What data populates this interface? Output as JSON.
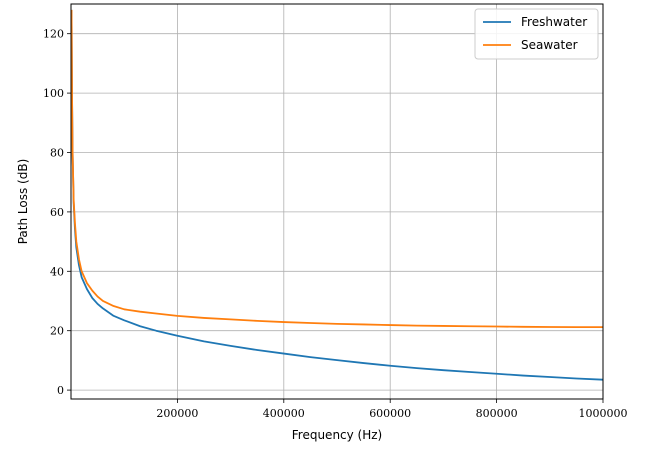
{
  "chart_data": {
    "type": "line",
    "xlabel": "Frequency (Hz)",
    "ylabel": "Path Loss (dB)",
    "xlim": [
      0,
      1000000
    ],
    "ylim": [
      -3,
      130
    ],
    "x_ticks": [
      200000,
      400000,
      600000,
      800000,
      1000000
    ],
    "x_tick_labels": [
      "200000",
      "400000",
      "600000",
      "800000",
      "1000000"
    ],
    "y_ticks": [
      0,
      20,
      40,
      60,
      80,
      100,
      120
    ],
    "y_tick_labels": [
      "0",
      "20",
      "40",
      "60",
      "80",
      "100",
      "120"
    ],
    "grid": true,
    "legend_position": "top-right",
    "series": [
      {
        "name": "Freshwater",
        "color": "#1f77b4",
        "x": [
          1000,
          2000,
          3000,
          5000,
          7500,
          10000,
          15000,
          20000,
          30000,
          40000,
          50000,
          60000,
          80000,
          100000,
          130000,
          160000,
          200000,
          250000,
          300000,
          350000,
          400000,
          450000,
          500000,
          550000,
          600000,
          650000,
          700000,
          750000,
          800000,
          850000,
          900000,
          950000,
          1000000
        ],
        "y": [
          128,
          98,
          80,
          63,
          54,
          48,
          42,
          38,
          34,
          31,
          29,
          27.5,
          25,
          23.5,
          21.5,
          20,
          18.3,
          16.4,
          14.9,
          13.5,
          12.3,
          11.1,
          10.1,
          9.1,
          8.2,
          7.4,
          6.7,
          6.1,
          5.5,
          4.9,
          4.4,
          3.9,
          3.5
        ]
      },
      {
        "name": "Seawater",
        "color": "#ff7f0e",
        "x": [
          1000,
          2000,
          3000,
          5000,
          7500,
          10000,
          15000,
          20000,
          30000,
          40000,
          50000,
          60000,
          80000,
          100000,
          130000,
          160000,
          200000,
          250000,
          300000,
          350000,
          400000,
          450000,
          500000,
          550000,
          600000,
          650000,
          700000,
          750000,
          800000,
          850000,
          900000,
          950000,
          1000000
        ],
        "y": [
          128,
          98,
          80,
          64,
          56,
          50,
          44,
          40,
          36,
          33.5,
          31.5,
          30,
          28.3,
          27.2,
          26.4,
          25.8,
          25,
          24.3,
          23.8,
          23.3,
          22.9,
          22.6,
          22.3,
          22.1,
          21.9,
          21.7,
          21.6,
          21.5,
          21.4,
          21.3,
          21.25,
          21.2,
          21.2
        ]
      }
    ]
  }
}
